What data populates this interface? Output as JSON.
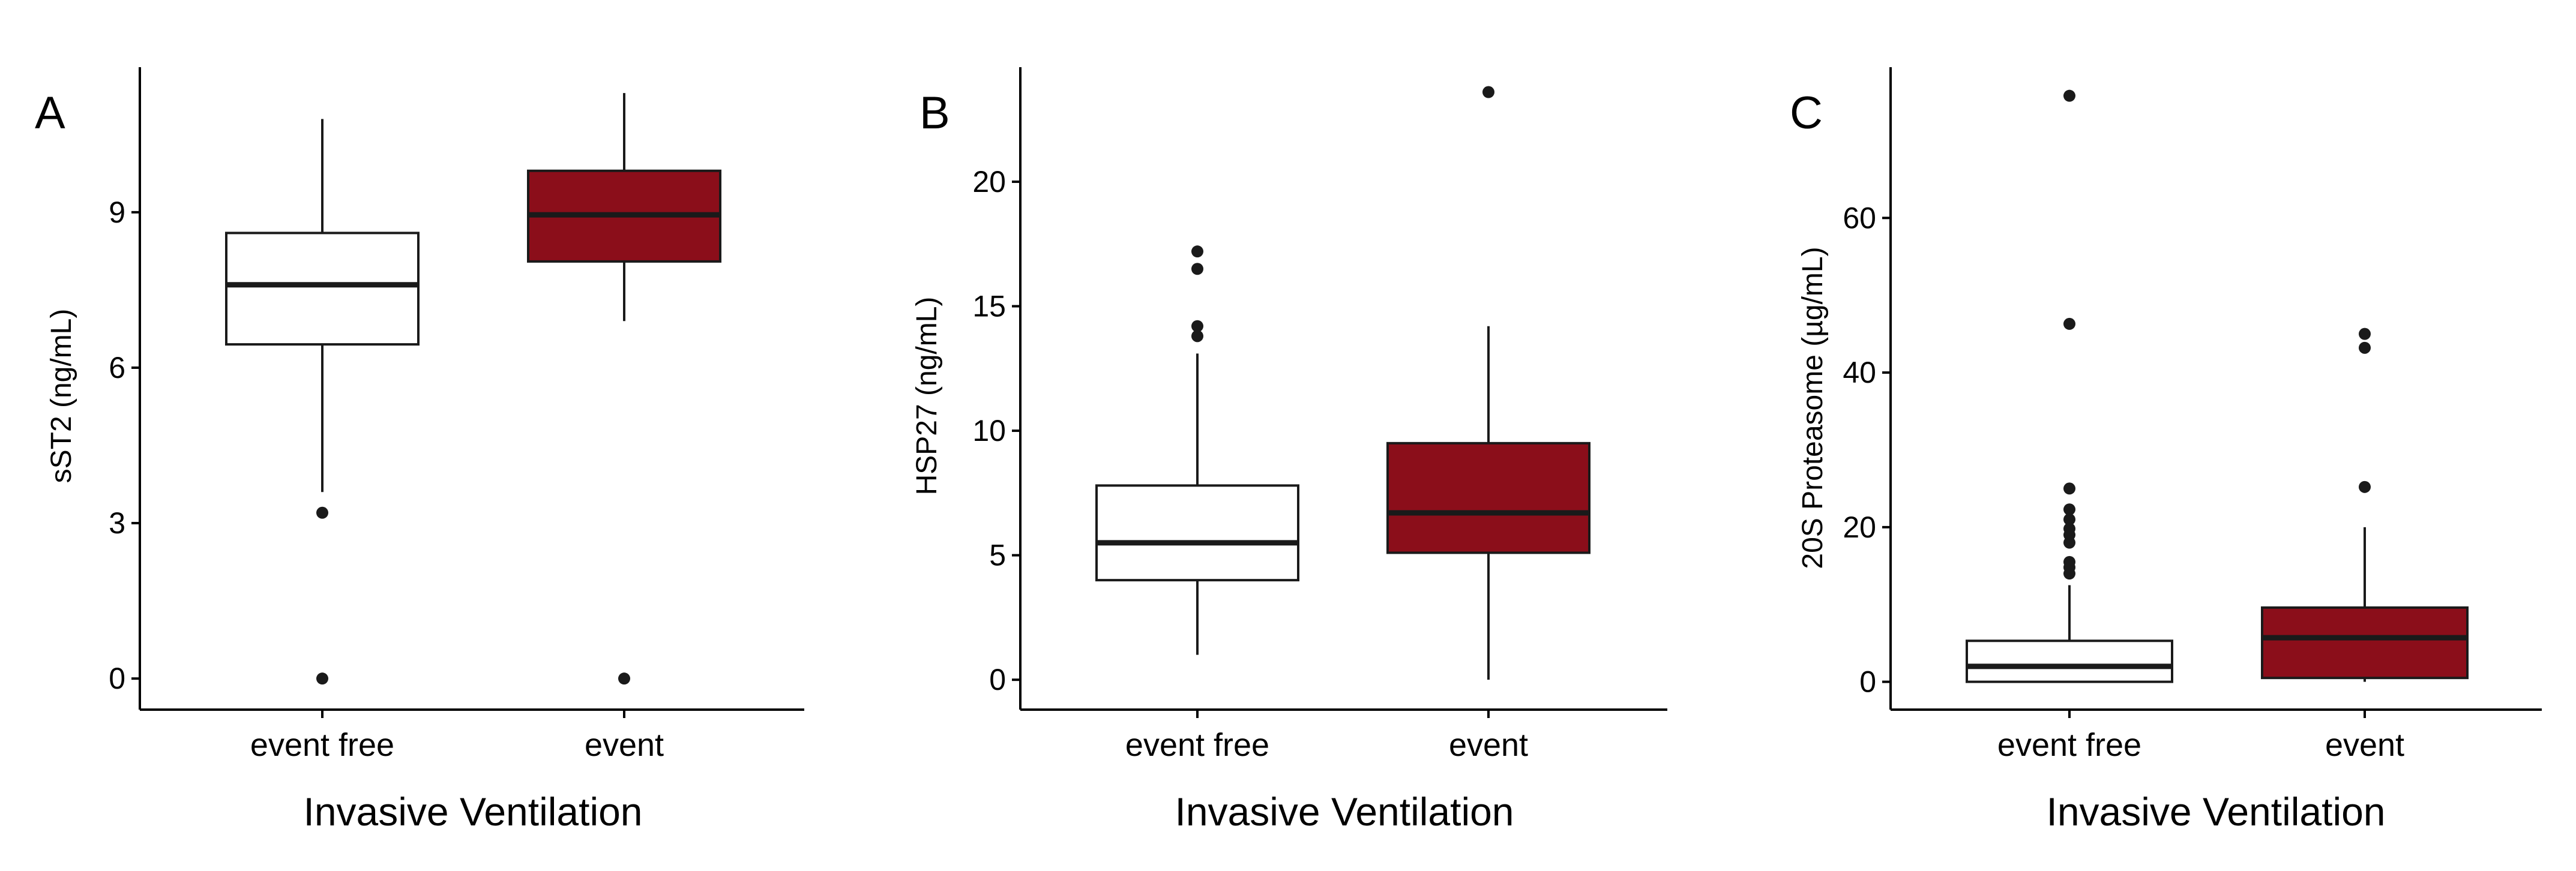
{
  "chart_data": [
    {
      "type": "box",
      "panel": "A",
      "ylabel": "sST2 (ng/mL)",
      "xlabel": "Invasive Ventilation",
      "ylim": [
        -0.6,
        11.8
      ],
      "yticks": [
        0,
        3,
        6,
        9
      ],
      "categories": [
        "event free",
        "event"
      ],
      "boxes": [
        {
          "category": "event free",
          "fill": "#ffffff",
          "q1": 6.45,
          "median": 7.6,
          "q3": 8.6,
          "whisker_low": 3.6,
          "whisker_high": 10.8,
          "outliers": [
            3.2,
            0
          ]
        },
        {
          "category": "event",
          "fill": "#8b0e1a",
          "q1": 8.05,
          "median": 8.95,
          "q3": 9.8,
          "whisker_low": 6.9,
          "whisker_high": 11.3,
          "outliers": [
            0
          ]
        }
      ]
    },
    {
      "type": "box",
      "panel": "B",
      "ylabel": "HSP27 (ng/mL)",
      "xlabel": "Invasive Ventilation",
      "ylim": [
        -1.2,
        24.6
      ],
      "yticks": [
        0,
        5,
        10,
        15,
        20
      ],
      "categories": [
        "event free",
        "event"
      ],
      "boxes": [
        {
          "category": "event free",
          "fill": "#ffffff",
          "q1": 4.0,
          "median": 5.5,
          "q3": 7.8,
          "whisker_low": 1.0,
          "whisker_high": 13.1,
          "outliers": [
            13.8,
            14.2,
            16.5,
            17.2
          ]
        },
        {
          "category": "event",
          "fill": "#8b0e1a",
          "q1": 5.1,
          "median": 6.7,
          "q3": 9.5,
          "whisker_low": 0.0,
          "whisker_high": 14.2,
          "outliers": [
            23.6
          ]
        }
      ]
    },
    {
      "type": "box",
      "panel": "C",
      "ylabel": "20S Proteasome (µg/mL)",
      "xlabel": "Invasive Ventilation",
      "ylim": [
        -3.6,
        79.5
      ],
      "yticks": [
        0,
        20,
        40,
        60
      ],
      "categories": [
        "event free",
        "event"
      ],
      "boxes": [
        {
          "category": "event free",
          "fill": "#ffffff",
          "q1": 0.0,
          "median": 2.0,
          "q3": 5.3,
          "whisker_low": 0.0,
          "whisker_high": 12.5,
          "outliers": [
            14.0,
            14.8,
            15.5,
            18.0,
            19.0,
            19.8,
            21.0,
            22.3,
            25.0,
            46.3,
            75.8
          ]
        },
        {
          "category": "event",
          "fill": "#8b0e1a",
          "q1": 0.5,
          "median": 5.7,
          "q3": 9.6,
          "whisker_low": 0.0,
          "whisker_high": 20.0,
          "outliers": [
            25.2,
            43.2,
            45.0
          ]
        }
      ]
    }
  ]
}
